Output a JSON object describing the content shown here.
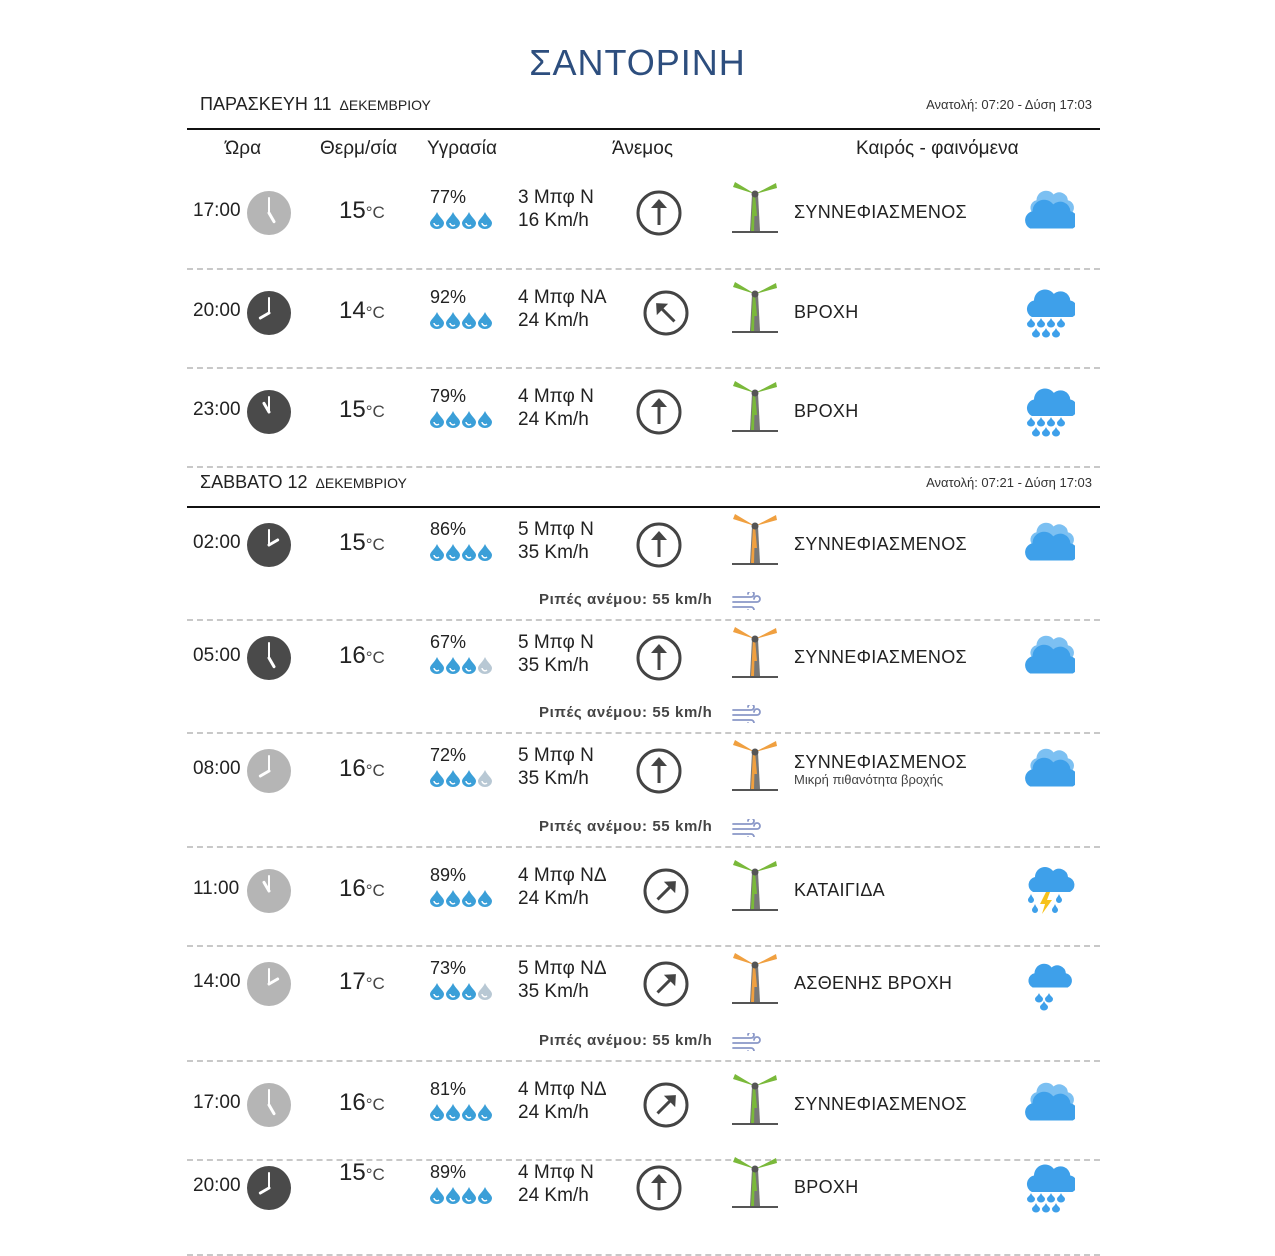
{
  "page": {
    "title": "ΣΑΝΤΟΡΙΝΗ"
  },
  "columns": {
    "time": "Ώρα",
    "temp": "Θερμ/σία",
    "humidity": "Υγρασία",
    "wind": "Άνεμος",
    "weather": "Καιρός - φαινόμενα"
  },
  "temp_unit": "°C",
  "gust_label": "Ριπές ανέμου: 55 km/h",
  "days": [
    {
      "name": "ΠΑΡΑΣΚΕΥΗ 11",
      "month": "ΔΕΚΕΜΒΡΙΟΥ",
      "sun": "Ανατολή: 07:20  - Δύση 17:03"
    },
    {
      "name": "ΣΑΒΒΑΤΟ 12",
      "month": "ΔΕΚΕΜΒΡΙΟΥ",
      "sun": "Ανατολή: 07:21  - Δύση 17:03"
    }
  ],
  "rows": [
    {
      "day": 0,
      "time": "17:00",
      "clock_style": "light",
      "temp": "15",
      "humidity": "77%",
      "drops_full": 4,
      "wind_beaufort": "3 Μπφ Ν",
      "wind_speed": "16 Km/h",
      "wind_direction": "N",
      "mill_color": "green",
      "condition": "ΣΥΝΝΕΦΙΑΣΜΕΝΟΣ",
      "icon": "cloudy-icon"
    },
    {
      "day": 0,
      "time": "20:00",
      "clock_style": "dark",
      "temp": "14",
      "humidity": "92%",
      "drops_full": 4,
      "wind_beaufort": "4 Μπφ ΝΑ",
      "wind_speed": "24 Km/h",
      "wind_direction": "SE",
      "mill_color": "green",
      "condition": "ΒΡΟΧΗ",
      "icon": "rain-icon"
    },
    {
      "day": 0,
      "time": "23:00",
      "clock_style": "dark",
      "temp": "15",
      "humidity": "79%",
      "drops_full": 4,
      "wind_beaufort": "4 Μπφ Ν",
      "wind_speed": "24 Km/h",
      "wind_direction": "N",
      "mill_color": "green",
      "condition": "ΒΡΟΧΗ",
      "icon": "rain-icon"
    },
    {
      "day": 1,
      "time": "02:00",
      "clock_style": "dark",
      "temp": "15",
      "humidity": "86%",
      "drops_full": 4,
      "wind_beaufort": "5 Μπφ Ν",
      "wind_speed": "35 Km/h",
      "wind_direction": "N",
      "mill_color": "orange",
      "condition": "ΣΥΝΝΕΦΙΑΣΜΕΝΟΣ",
      "icon": "cloudy-icon",
      "gust": true
    },
    {
      "day": 1,
      "time": "05:00",
      "clock_style": "dark",
      "temp": "16",
      "humidity": "67%",
      "drops_full": 3,
      "wind_beaufort": "5 Μπφ Ν",
      "wind_speed": "35 Km/h",
      "wind_direction": "N",
      "mill_color": "orange",
      "condition": "ΣΥΝΝΕΦΙΑΣΜΕΝΟΣ",
      "icon": "cloudy-icon",
      "gust": true
    },
    {
      "day": 1,
      "time": "08:00",
      "clock_style": "light",
      "temp": "16",
      "humidity": "72%",
      "drops_full": 3,
      "wind_beaufort": "5 Μπφ Ν",
      "wind_speed": "35 Km/h",
      "wind_direction": "N",
      "mill_color": "orange",
      "condition": "ΣΥΝΝΕΦΙΑΣΜΕΝΟΣ",
      "condition_sub": "Μικρή πιθανότητα βροχής",
      "icon": "cloudy-icon",
      "gust": true
    },
    {
      "day": 1,
      "time": "11:00",
      "clock_style": "light",
      "temp": "16",
      "humidity": "89%",
      "drops_full": 4,
      "wind_beaufort": "4 Μπφ ΝΔ",
      "wind_speed": "24 Km/h",
      "wind_direction": "SW",
      "mill_color": "green",
      "condition": "ΚΑΤΑΙΓΙΔΑ",
      "icon": "thunderstorm-icon"
    },
    {
      "day": 1,
      "time": "14:00",
      "clock_style": "light",
      "temp": "17",
      "humidity": "73%",
      "drops_full": 3,
      "wind_beaufort": "5 Μπφ ΝΔ",
      "wind_speed": "35 Km/h",
      "wind_direction": "SW",
      "mill_color": "orange",
      "condition": "ΑΣΘΕΝΗΣ ΒΡΟΧΗ",
      "icon": "light-rain-icon",
      "gust": true
    },
    {
      "day": 1,
      "time": "17:00",
      "clock_style": "light",
      "temp": "16",
      "humidity": "81%",
      "drops_full": 4,
      "wind_beaufort": "4 Μπφ ΝΔ",
      "wind_speed": "24 Km/h",
      "wind_direction": "SW",
      "mill_color": "green",
      "condition": "ΣΥΝΝΕΦΙΑΣΜΕΝΟΣ",
      "icon": "cloudy-icon"
    },
    {
      "day": 1,
      "time": "20:00",
      "clock_style": "dark",
      "temp": "15",
      "humidity": "89%",
      "drops_full": 4,
      "wind_beaufort": "4 Μπφ Ν",
      "wind_speed": "24 Km/h",
      "wind_direction": "N",
      "mill_color": "green",
      "condition": "ΒΡΟΧΗ",
      "icon": "rain-icon"
    }
  ],
  "colors": {
    "title": "#2d4e7e",
    "clock_dark": "#4a4a4a",
    "clock_light": "#b5b5b5",
    "drop": "#3b9fd8",
    "drop_empty": "#b8c8d4",
    "mill_green": "#7ab93a",
    "mill_orange": "#f0a040",
    "cloud": "#3ea0ea",
    "gust_icon": "#8a98c8"
  }
}
